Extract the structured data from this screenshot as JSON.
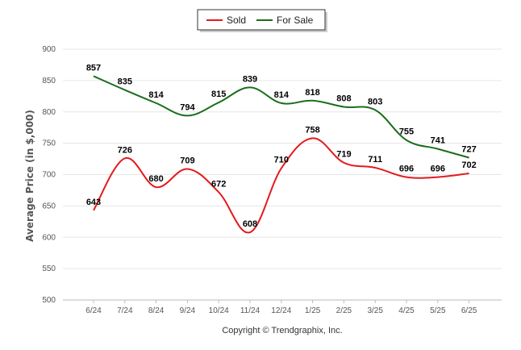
{
  "chart_data": {
    "type": "line",
    "categories": [
      "6/24",
      "7/24",
      "8/24",
      "9/24",
      "10/24",
      "11/24",
      "12/24",
      "1/25",
      "2/25",
      "3/25",
      "4/25",
      "5/25",
      "6/25"
    ],
    "series": [
      {
        "name": "Sold",
        "color": "#e31a1c",
        "values": [
          643,
          726,
          680,
          709,
          672,
          608,
          710,
          758,
          719,
          711,
          696,
          696,
          702
        ]
      },
      {
        "name": "For Sale",
        "color": "#1b6e1b",
        "values": [
          857,
          835,
          814,
          794,
          815,
          839,
          814,
          818,
          808,
          803,
          755,
          741,
          727
        ]
      }
    ],
    "ylabel": "Average Price (in $,000)",
    "ylim": [
      500,
      900
    ],
    "yticks": [
      500,
      550,
      600,
      650,
      700,
      750,
      800,
      850,
      900
    ],
    "grid": true,
    "legend_position": "top-center",
    "footer": "Copyright © Trendgraphix, Inc."
  }
}
